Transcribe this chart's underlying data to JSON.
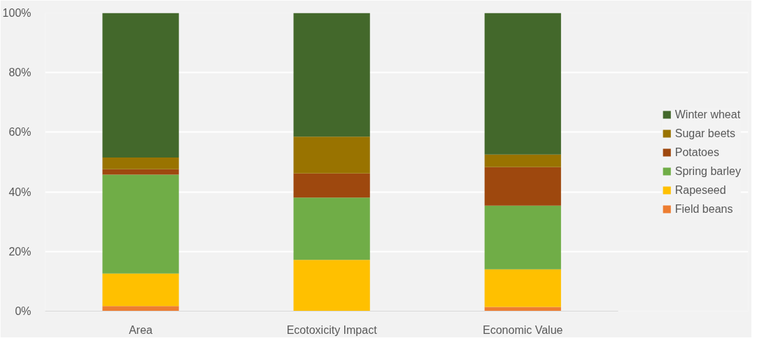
{
  "chart_data": {
    "type": "bar",
    "stacked": true,
    "categories": [
      "Area",
      "Ecotoxicity Impact",
      "Economic Value"
    ],
    "series": [
      {
        "name": "Field beans",
        "color": "#ed7d31",
        "values": [
          1.7,
          0,
          1.4
        ]
      },
      {
        "name": "Rapeseed",
        "color": "#ffc000",
        "values": [
          10.9,
          17.2,
          12.6
        ]
      },
      {
        "name": "Spring barley",
        "color": "#70ad47",
        "values": [
          33.2,
          20.9,
          21.4
        ]
      },
      {
        "name": "Potatoes",
        "color": "#9e480e",
        "values": [
          1.8,
          8.1,
          12.9
        ]
      },
      {
        "name": "Sugar beets",
        "color": "#997300",
        "values": [
          3.9,
          12.3,
          4.2
        ]
      },
      {
        "name": "Winter wheat",
        "color": "#43682b",
        "values": [
          48.5,
          41.5,
          47.5
        ]
      }
    ],
    "ylim": [
      0,
      100
    ],
    "yticks": [
      {
        "value": 0,
        "label": "0%"
      },
      {
        "value": 20,
        "label": "20%"
      },
      {
        "value": 40,
        "label": "40%"
      },
      {
        "value": 60,
        "label": "60%"
      },
      {
        "value": 80,
        "label": "80%"
      },
      {
        "value": 100,
        "label": "100%"
      }
    ],
    "grid": "y",
    "legend": "right"
  }
}
